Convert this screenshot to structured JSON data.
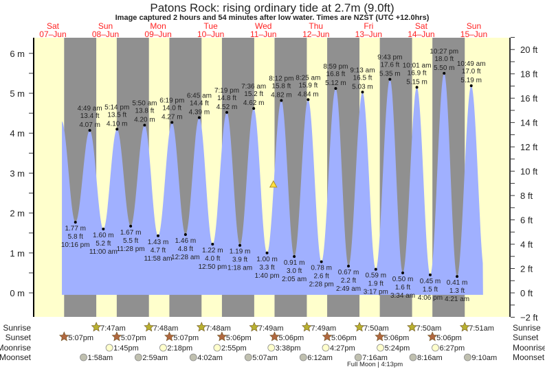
{
  "chart_data": {
    "type": "area",
    "title": "Patons Rock: rising  ordinary tide at 2.7m (9.0ft)",
    "subtitle": "Image captured 2 hours and 54 minutes after low water. Times are NZST (UTC +12.0hrs)",
    "ylabel_left_unit": "m",
    "ylabel_right_unit": "ft",
    "ylim_m": [
      -0.61,
      6.3
    ],
    "left_ticks": [
      "0 m",
      "1 m",
      "2 m",
      "3 m",
      "4 m",
      "5 m",
      "6 m"
    ],
    "right_ticks": [
      "−2 ft",
      "0 ft",
      "2 ft",
      "4 ft",
      "6 ft",
      "8 ft",
      "10 ft",
      "12 ft",
      "14 ft",
      "16 ft",
      "18 ft",
      "20 ft"
    ],
    "days": [
      {
        "day": "Sat",
        "date": "07–Jun"
      },
      {
        "day": "Sun",
        "date": "08–Jun"
      },
      {
        "day": "Mon",
        "date": "09–Jun"
      },
      {
        "day": "Tue",
        "date": "10–Jun"
      },
      {
        "day": "Wed",
        "date": "11–Jun"
      },
      {
        "day": "Thu",
        "date": "12–Jun"
      },
      {
        "day": "Fri",
        "date": "13–Jun"
      },
      {
        "day": "Sat",
        "date": "14–Jun"
      },
      {
        "day": "Sun",
        "date": "15–Jun"
      }
    ],
    "current": {
      "hours": 112.57,
      "m": 2.7
    },
    "extremes": [
      {
        "type": "low",
        "time": "10:16 pm",
        "m": "1.77 m",
        "ft": "5.8 ft",
        "value": 1.77,
        "hours": 22.27
      },
      {
        "type": "high",
        "time": "4:49 am",
        "m": "4.07 m",
        "ft": "13.4 ft",
        "value": 4.07,
        "hours": 28.82
      },
      {
        "type": "low",
        "time": "11:00 am",
        "m": "1.60 m",
        "ft": "5.2 ft",
        "value": 1.6,
        "hours": 35.0
      },
      {
        "type": "high",
        "time": "5:14 pm",
        "m": "4.10 m",
        "ft": "13.5 ft",
        "value": 4.1,
        "hours": 41.23
      },
      {
        "type": "low",
        "time": "11:28 pm",
        "m": "1.67 m",
        "ft": "5.5 ft",
        "value": 1.67,
        "hours": 47.47
      },
      {
        "type": "high",
        "time": "5:50 am",
        "m": "4.20 m",
        "ft": "13.8 ft",
        "value": 4.2,
        "hours": 53.83
      },
      {
        "type": "low",
        "time": "11:58 am",
        "m": "1.43 m",
        "ft": "4.7 ft",
        "value": 1.43,
        "hours": 59.97
      },
      {
        "type": "high",
        "time": "6:19 pm",
        "m": "4.27 m",
        "ft": "14.0 ft",
        "value": 4.27,
        "hours": 66.32
      },
      {
        "type": "low",
        "time": "12:28 am",
        "m": "1.46 m",
        "ft": "4.8 ft",
        "value": 1.46,
        "hours": 72.47
      },
      {
        "type": "high",
        "time": "6:45 am",
        "m": "4.39 m",
        "ft": "14.4 ft",
        "value": 4.39,
        "hours": 78.75
      },
      {
        "type": "low",
        "time": "12:50 pm",
        "m": "1.22 m",
        "ft": "4.0 ft",
        "value": 1.22,
        "hours": 84.83
      },
      {
        "type": "high",
        "time": "7:19 pm",
        "m": "4.52 m",
        "ft": "14.8 ft",
        "value": 4.52,
        "hours": 91.32
      },
      {
        "type": "low",
        "time": "1:18 am",
        "m": "1.19 m",
        "ft": "3.9 ft",
        "value": 1.19,
        "hours": 97.3
      },
      {
        "type": "high",
        "time": "7:36 am",
        "m": "4.62 m",
        "ft": "15.2 ft",
        "value": 4.62,
        "hours": 103.6
      },
      {
        "type": "low",
        "time": "1:40 pm",
        "m": "1.00 m",
        "ft": "3.3 ft",
        "value": 1.0,
        "hours": 109.67
      },
      {
        "type": "high",
        "time": "8:12 pm",
        "m": "4.82 m",
        "ft": "15.8 ft",
        "value": 4.82,
        "hours": 116.2
      },
      {
        "type": "low",
        "time": "2:05 am",
        "m": "0.91 m",
        "ft": "3.0 ft",
        "value": 0.91,
        "hours": 122.08
      },
      {
        "type": "high",
        "time": "8:25 am",
        "m": "4.84 m",
        "ft": "15.9 ft",
        "value": 4.84,
        "hours": 128.42
      },
      {
        "type": "low",
        "time": "2:28 pm",
        "m": "0.78 m",
        "ft": "2.6 ft",
        "value": 0.78,
        "hours": 134.47
      },
      {
        "type": "high",
        "time": "8:59 pm",
        "m": "5.12 m",
        "ft": "16.8 ft",
        "value": 5.12,
        "hours": 140.98
      },
      {
        "type": "low",
        "time": "2:49 am",
        "m": "0.67 m",
        "ft": "2.2 ft",
        "value": 0.67,
        "hours": 146.82
      },
      {
        "type": "high",
        "time": "9:13 am",
        "m": "5.03 m",
        "ft": "16.5 ft",
        "value": 5.03,
        "hours": 153.22
      },
      {
        "type": "low",
        "time": "3:17 pm",
        "m": "0.59 m",
        "ft": "1.9 ft",
        "value": 0.59,
        "hours": 159.28
      },
      {
        "type": "high",
        "time": "9:43 pm",
        "m": "5.35 m",
        "ft": "17.6 ft",
        "value": 5.35,
        "hours": 165.72
      },
      {
        "type": "low",
        "time": "3:34 am",
        "m": "0.50 m",
        "ft": "1.6 ft",
        "value": 0.5,
        "hours": 171.57
      },
      {
        "type": "high",
        "time": "10:01 am",
        "m": "5.15 m",
        "ft": "16.9 ft",
        "value": 5.15,
        "hours": 178.02
      },
      {
        "type": "low",
        "time": "4:06 pm",
        "m": "0.45 m",
        "ft": "1.5 ft",
        "value": 0.45,
        "hours": 184.1
      },
      {
        "type": "high",
        "time": "10:27 pm",
        "m": "5.50 m",
        "ft": "18.0 ft",
        "value": 5.5,
        "hours": 190.45
      },
      {
        "type": "low",
        "time": "4:21 am",
        "m": "0.41 m",
        "ft": "1.3 ft",
        "value": 0.41,
        "hours": 196.35
      },
      {
        "type": "high",
        "time": "10:49 am",
        "m": "5.19 m",
        "ft": "17.0 ft",
        "value": 5.19,
        "hours": 202.82
      }
    ],
    "rows": {
      "sunrise_label": "Sunrise",
      "sunset_label": "Sunset",
      "moonrise_label": "Moonrise",
      "moonset_label": "Moonset",
      "sunrise": [
        {
          "t": "7:47am",
          "h": 31.78
        },
        {
          "t": "7:48am",
          "h": 55.8
        },
        {
          "t": "7:48am",
          "h": 79.8
        },
        {
          "t": "7:49am",
          "h": 103.82
        },
        {
          "t": "7:49am",
          "h": 127.82
        },
        {
          "t": "7:50am",
          "h": 151.83
        },
        {
          "t": "7:50am",
          "h": 175.83
        },
        {
          "t": "7:51am",
          "h": 199.85
        }
      ],
      "sunset": [
        {
          "t": "5:07pm",
          "h": 17.12
        },
        {
          "t": "5:07pm",
          "h": 41.12
        },
        {
          "t": "5:07pm",
          "h": 65.12
        },
        {
          "t": "5:06pm",
          "h": 89.1
        },
        {
          "t": "5:06pm",
          "h": 113.1
        },
        {
          "t": "5:06pm",
          "h": 137.1
        },
        {
          "t": "5:06pm",
          "h": 161.1
        },
        {
          "t": "5:06pm",
          "h": 185.1
        }
      ],
      "moonrise": [
        {
          "t": "1:45pm",
          "h": 37.75
        },
        {
          "t": "2:18pm",
          "h": 62.3
        },
        {
          "t": "2:55pm",
          "h": 86.92
        },
        {
          "t": "3:38pm",
          "h": 111.63
        },
        {
          "t": "4:27pm",
          "h": 136.45
        },
        {
          "t": "5:24pm",
          "h": 161.4
        },
        {
          "t": "6:27pm",
          "h": 186.45
        }
      ],
      "moonset": [
        {
          "t": "1:58am",
          "h": 25.97
        },
        {
          "t": "2:59am",
          "h": 50.98
        },
        {
          "t": "4:02am",
          "h": 76.03
        },
        {
          "t": "5:07am",
          "h": 101.12
        },
        {
          "t": "6:12am",
          "h": 126.2
        },
        {
          "t": "7:16am",
          "h": 151.27
        },
        {
          "t": "8:16am",
          "h": 176.27
        },
        {
          "t": "9:10am",
          "h": 201.17
        }
      ],
      "full_moon": "Full Moon | 4:13pm"
    },
    "colors": {
      "day": "#ffffcc",
      "night": "#909090",
      "water": "#a0b0ff",
      "date": "#ff2020",
      "sunrise": "#b8b030",
      "sunset": "#b06840",
      "moonrise": "#ffffcc",
      "moonset": "#c0c0b0"
    }
  }
}
